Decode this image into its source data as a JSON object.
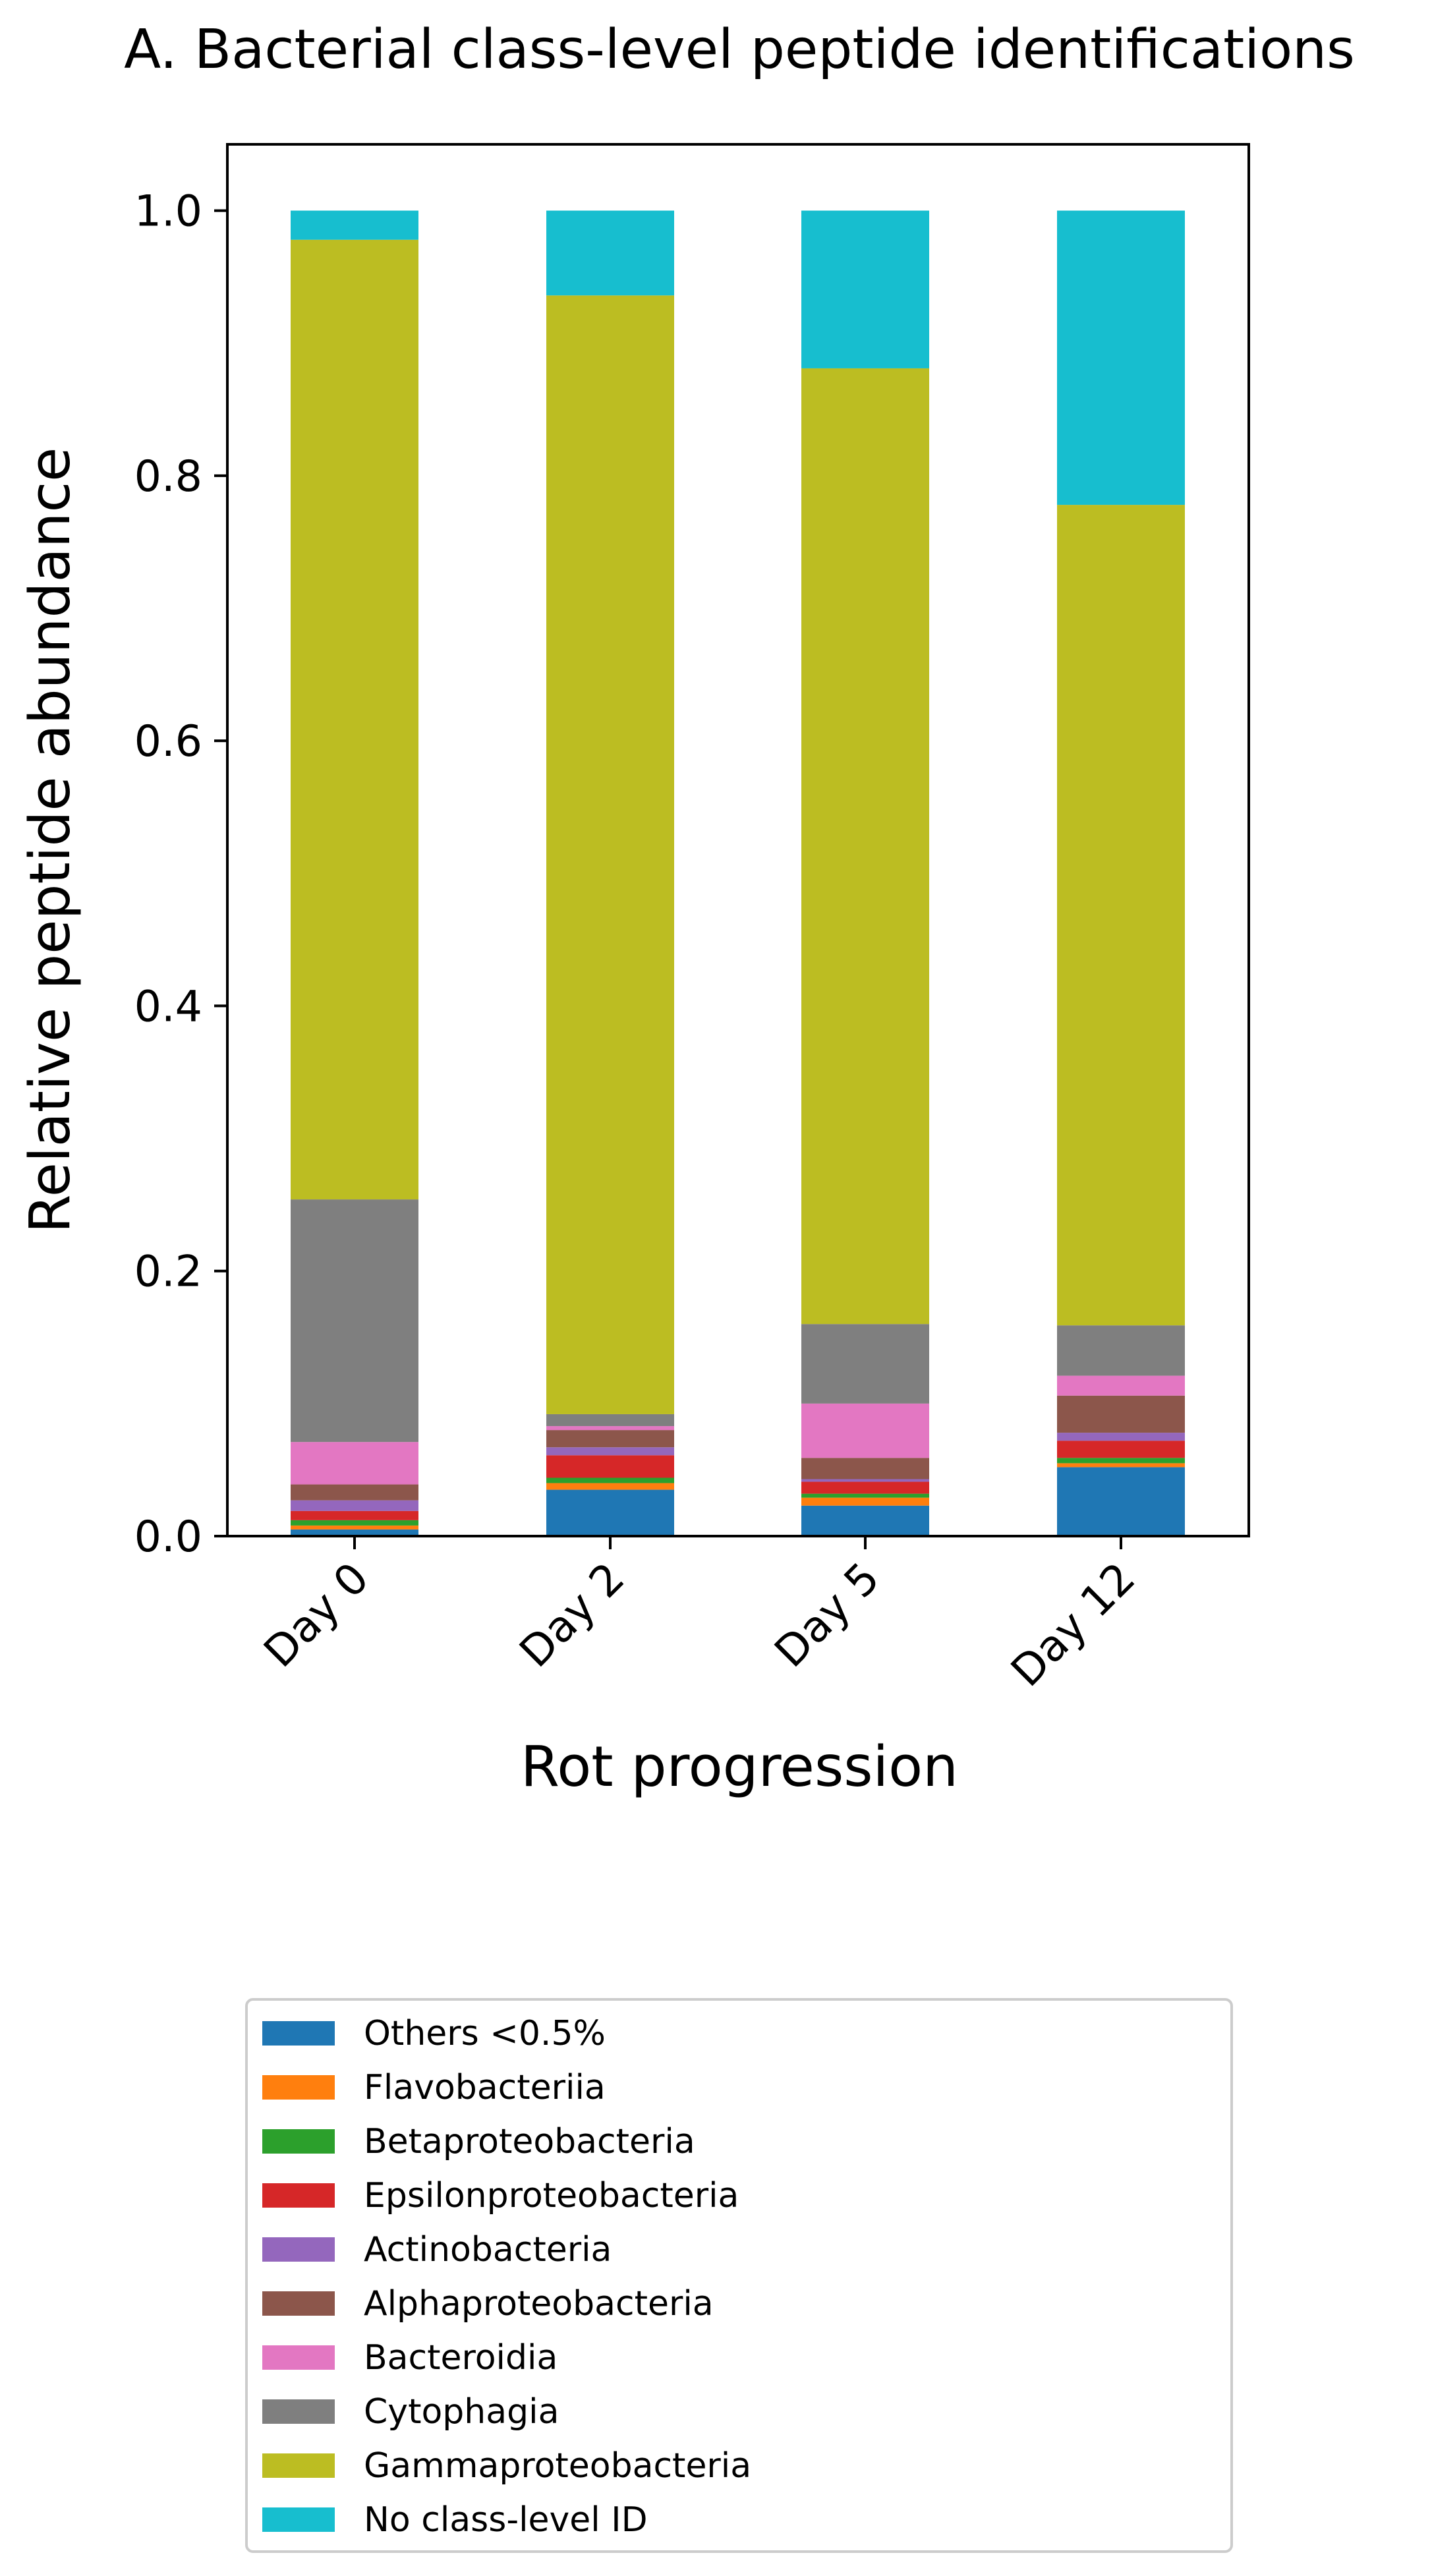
{
  "chart_data": {
    "type": "bar",
    "stacked": true,
    "title": "A. Bacterial class-level peptide identifications",
    "xlabel": "Rot progression",
    "ylabel": "Relative peptide abundance",
    "ylim": [
      0,
      1.05
    ],
    "yticks": [
      "0.0",
      "0.2",
      "0.4",
      "0.6",
      "0.8",
      "1.0"
    ],
    "categories": [
      "Day 0",
      "Day 2",
      "Day 5",
      "Day 12"
    ],
    "legend_position": "below",
    "series": [
      {
        "name": "Others <0.5%",
        "color": "#1f77b4",
        "values": [
          0.005,
          0.035,
          0.023,
          0.052
        ]
      },
      {
        "name": "Flavobacteriia",
        "color": "#ff7f0e",
        "values": [
          0.003,
          0.005,
          0.006,
          0.003
        ]
      },
      {
        "name": "Betaproteobacteria",
        "color": "#2ca02c",
        "values": [
          0.004,
          0.004,
          0.003,
          0.004
        ]
      },
      {
        "name": "Epsilonproteobacteria",
        "color": "#d62728",
        "values": [
          0.007,
          0.017,
          0.009,
          0.013
        ]
      },
      {
        "name": "Actinobacteria",
        "color": "#9467bd",
        "values": [
          0.008,
          0.006,
          0.002,
          0.006
        ]
      },
      {
        "name": "Alphaproteobacteria",
        "color": "#8c564b",
        "values": [
          0.012,
          0.013,
          0.016,
          0.028
        ]
      },
      {
        "name": "Bacteroidia",
        "color": "#e377c2",
        "values": [
          0.032,
          0.003,
          0.041,
          0.015
        ]
      },
      {
        "name": "Cytophagia",
        "color": "#7f7f7f",
        "values": [
          0.183,
          0.009,
          0.06,
          0.038
        ]
      },
      {
        "name": "Gammaproteobacteria",
        "color": "#bcbd22",
        "values": [
          0.724,
          0.844,
          0.721,
          0.619
        ]
      },
      {
        "name": "No class-level ID",
        "color": "#17becf",
        "values": [
          0.022,
          0.064,
          0.119,
          0.222
        ]
      }
    ]
  }
}
